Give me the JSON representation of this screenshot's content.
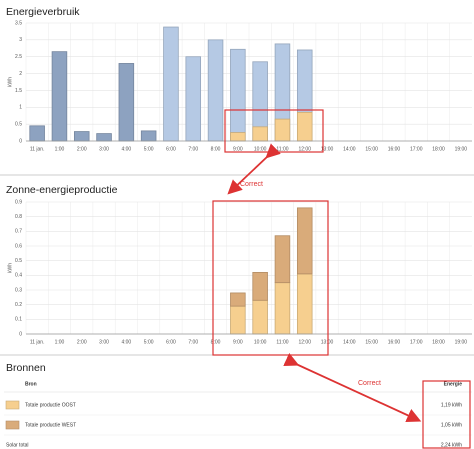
{
  "chart_data": [
    {
      "type": "bar",
      "title": "Energieverbruik",
      "ylabel": "kWh",
      "categories": [
        "11 jan.",
        "1:00",
        "2:00",
        "3:00",
        "4:00",
        "5:00",
        "6:00",
        "7:00",
        "8:00",
        "9:00",
        "10:00",
        "11:00",
        "12:00",
        "13:00",
        "14:00",
        "15:00",
        "16:00",
        "17:00",
        "18:00",
        "19:00"
      ],
      "series": [
        {
          "color": "#8da2c0",
          "values": [
            0.45,
            2.65,
            0.28,
            0.22,
            2.3,
            0.3,
            null,
            null,
            null,
            null,
            null,
            null,
            null,
            null,
            null,
            null,
            null,
            null,
            null,
            null
          ]
        },
        {
          "color": "#b5c9e4",
          "values": [
            null,
            null,
            null,
            null,
            null,
            null,
            3.38,
            2.5,
            3.0,
            2.72,
            2.35,
            2.88,
            2.7,
            null,
            null,
            null,
            null,
            null,
            null,
            null
          ]
        },
        {
          "color": "#f6cf8f",
          "values": [
            null,
            null,
            null,
            null,
            null,
            null,
            null,
            null,
            null,
            0.25,
            0.42,
            0.65,
            0.85,
            null,
            null,
            null,
            null,
            null,
            null,
            null
          ]
        }
      ],
      "stacked": false,
      "ylim": [
        0,
        3.5
      ],
      "yticks": [
        0,
        0.5,
        1,
        1.5,
        2,
        2.5,
        3,
        3.5
      ],
      "grid": true
    },
    {
      "type": "bar",
      "title": "Zonne-energieproductie",
      "ylabel": "kWh",
      "categories": [
        "11 jan.",
        "1:00",
        "2:00",
        "3:00",
        "4:00",
        "5:00",
        "6:00",
        "7:00",
        "8:00",
        "9:00",
        "10:00",
        "11:00",
        "12:00",
        "13:00",
        "14:00",
        "15:00",
        "16:00",
        "17:00",
        "18:00",
        "19:00"
      ],
      "series": [
        {
          "color": "#f6cf8f",
          "values": [
            null,
            null,
            null,
            null,
            null,
            null,
            null,
            null,
            null,
            0.19,
            0.23,
            0.35,
            0.41,
            null,
            null,
            null,
            null,
            null,
            null,
            null
          ]
        },
        {
          "color": "#d9ab7a",
          "values": [
            null,
            null,
            null,
            null,
            null,
            null,
            null,
            null,
            null,
            0.09,
            0.19,
            0.32,
            0.45,
            null,
            null,
            null,
            null,
            null,
            null,
            null
          ]
        }
      ],
      "stacked": true,
      "ylim": [
        0,
        0.9
      ],
      "yticks": [
        0,
        0.1,
        0.2,
        0.3,
        0.4,
        0.5,
        0.6,
        0.7,
        0.8,
        0.9
      ],
      "grid": true
    }
  ],
  "table": {
    "title": "Bronnen",
    "header": [
      "Bron",
      "Energie"
    ],
    "rows": [
      {
        "color": "#f6cf8f",
        "cells": [
          "Totale productie OOST",
          "1,19 kWh"
        ]
      },
      {
        "color": "#d9ab7a",
        "cells": [
          "Totale productie WEST",
          "1,05 kWh"
        ]
      },
      {
        "cells": [
          "Solar total",
          "2,24 kWh"
        ]
      }
    ]
  },
  "annotations": [
    "Correct",
    "Correct"
  ]
}
